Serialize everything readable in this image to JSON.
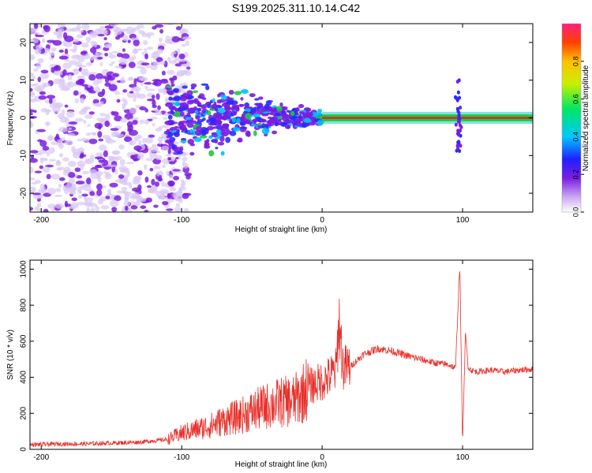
{
  "title": "S199.2025.311.10.14.C42",
  "colors": {
    "snr_line": "#e8302a",
    "spectrum_purple": "#7b1de0",
    "spectrum_light": "#d8c8f5",
    "band_red": "#e8202a",
    "band_green": "#22c83c"
  },
  "chart_data": [
    {
      "type": "heatmap",
      "xlabel": "Height of straight line (km)",
      "ylabel": "Frequency (Hz)",
      "xlim": [
        -208,
        150
      ],
      "ylim": [
        -25,
        25
      ],
      "xticks": [
        -200,
        -100,
        0,
        100
      ],
      "xtick_labels": [
        "-200",
        "-100",
        "0",
        "100"
      ],
      "yticks": [
        -20,
        -10,
        0,
        10,
        20
      ],
      "ytick_labels": [
        "-20",
        "-10",
        "0",
        "10",
        "20"
      ],
      "dominant_frequency_hz": 0,
      "features": [
        {
          "label": "diffuse noise",
          "x_range": [
            -208,
            -110
          ],
          "y_range": [
            -25,
            25
          ]
        },
        {
          "label": "converging cluster",
          "x_range": [
            -110,
            0
          ],
          "y_range": [
            -8,
            8
          ]
        },
        {
          "label": "narrow band at 0 Hz",
          "x_range": [
            0,
            150
          ],
          "y": 0,
          "amplitude": 0.95
        },
        {
          "label": "disturbance",
          "x": 97,
          "y_range": [
            -10,
            10
          ]
        }
      ],
      "colorbar": {
        "label": "Normalized spectral amplitude",
        "range": [
          0.0,
          1.0
        ],
        "ticks": [
          0.0,
          0.2,
          0.4,
          0.6,
          0.8
        ],
        "tick_labels": [
          "0.0",
          "0.2",
          "0.4",
          "0.6",
          "0.8"
        ]
      }
    },
    {
      "type": "line",
      "xlabel": "Height of straight line (km)",
      "ylabel": "SNR (10 * v/v)",
      "xlim": [
        -208,
        150
      ],
      "ylim": [
        0,
        1050
      ],
      "xticks": [
        -200,
        -100,
        0,
        100
      ],
      "xtick_labels": [
        "-200",
        "-100",
        "0",
        "100"
      ],
      "yticks": [
        0,
        200,
        400,
        600,
        800,
        1000
      ],
      "ytick_labels": [
        "0",
        "200",
        "400",
        "600",
        "800",
        "1000"
      ],
      "series": [
        {
          "name": "SNR",
          "x": [
            -208,
            -190,
            -170,
            -150,
            -130,
            -110,
            -100,
            -90,
            -80,
            -70,
            -60,
            -50,
            -40,
            -30,
            -20,
            -15,
            -10,
            -5,
            0,
            5,
            10,
            12,
            15,
            20,
            30,
            40,
            50,
            60,
            70,
            80,
            90,
            95,
            98,
            100,
            102,
            104,
            106,
            110,
            120,
            130,
            140,
            150
          ],
          "y": [
            25,
            30,
            30,
            35,
            40,
            55,
            90,
            110,
            130,
            160,
            180,
            210,
            240,
            260,
            270,
            300,
            350,
            360,
            380,
            400,
            440,
            720,
            450,
            460,
            530,
            560,
            545,
            520,
            500,
            480,
            470,
            450,
            1040,
            30,
            640,
            460,
            440,
            430,
            440,
            430,
            440,
            445
          ]
        }
      ]
    }
  ]
}
